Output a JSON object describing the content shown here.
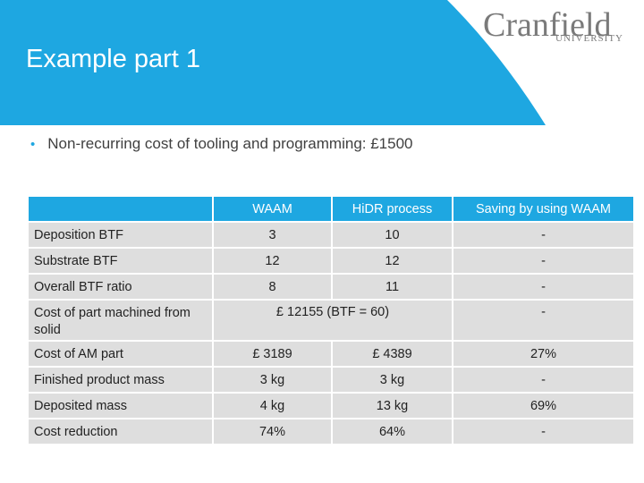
{
  "slide": {
    "title": "Example part 1",
    "logo": {
      "name": "Cranfield",
      "sub": "UNIVERSITY"
    },
    "bullet": "Non-recurring cost of tooling and programming: £1500"
  },
  "colors": {
    "accent": "#1ea7e1",
    "row_bg": "#dedede"
  },
  "table": {
    "headers": [
      "",
      "WAAM",
      "HiDR process",
      "Saving by using WAAM"
    ],
    "rows": [
      {
        "label": "Deposition BTF",
        "waam": "3",
        "hidr": "10",
        "saving": "-"
      },
      {
        "label": "Substrate BTF",
        "waam": "12",
        "hidr": "12",
        "saving": "-"
      },
      {
        "label": "Overall BTF ratio",
        "waam": "8",
        "hidr": "11",
        "saving": "-"
      },
      {
        "label": "Cost of part machined from solid",
        "merged": "£ 12155 (BTF = 60)",
        "saving": "-"
      },
      {
        "label": "Cost of AM part",
        "waam": "£ 3189",
        "hidr": "£ 4389",
        "saving": "27%"
      },
      {
        "label": "Finished product mass",
        "waam": "3 kg",
        "hidr": "3 kg",
        "saving": "-"
      },
      {
        "label": "Deposited mass",
        "waam": "4 kg",
        "hidr": "13 kg",
        "saving": "69%"
      },
      {
        "label": "Cost reduction",
        "waam": "74%",
        "hidr": "64%",
        "saving": "-"
      }
    ]
  }
}
